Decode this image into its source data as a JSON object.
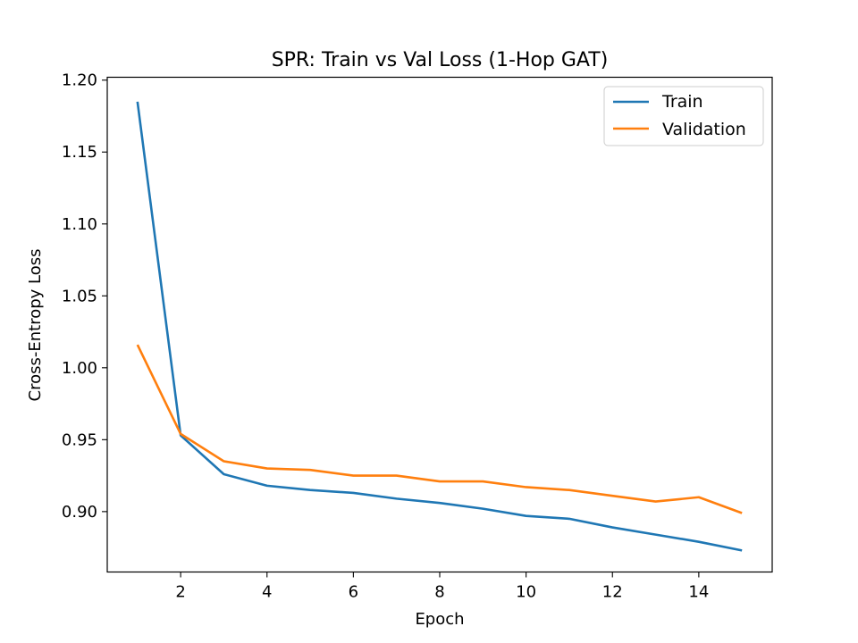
{
  "chart_data": {
    "type": "line",
    "title": "SPR: Train vs Val Loss (1-Hop GAT)",
    "xlabel": "Epoch",
    "ylabel": "Cross-Entropy Loss",
    "x": [
      1,
      2,
      3,
      4,
      5,
      6,
      7,
      8,
      9,
      10,
      11,
      12,
      13,
      14,
      15
    ],
    "xlim": [
      0.3,
      15.7
    ],
    "ylim": [
      0.858,
      1.202
    ],
    "xticks": [
      2,
      4,
      6,
      8,
      10,
      12,
      14
    ],
    "yticks": [
      0.9,
      0.95,
      1.0,
      1.05,
      1.1,
      1.15,
      1.2
    ],
    "ytick_labels": [
      "0.90",
      "0.95",
      "1.00",
      "1.05",
      "1.10",
      "1.15",
      "1.20"
    ],
    "grid": false,
    "legend": "top-right",
    "series": [
      {
        "name": "Train",
        "color": "#1f77b4",
        "values": [
          1.185,
          0.953,
          0.926,
          0.918,
          0.915,
          0.913,
          0.909,
          0.906,
          0.902,
          0.897,
          0.895,
          0.889,
          0.884,
          0.879,
          0.873
        ]
      },
      {
        "name": "Validation",
        "color": "#ff7f0e",
        "values": [
          1.016,
          0.954,
          0.935,
          0.93,
          0.929,
          0.925,
          0.925,
          0.921,
          0.921,
          0.917,
          0.915,
          0.911,
          0.907,
          0.91,
          0.899
        ]
      }
    ]
  }
}
